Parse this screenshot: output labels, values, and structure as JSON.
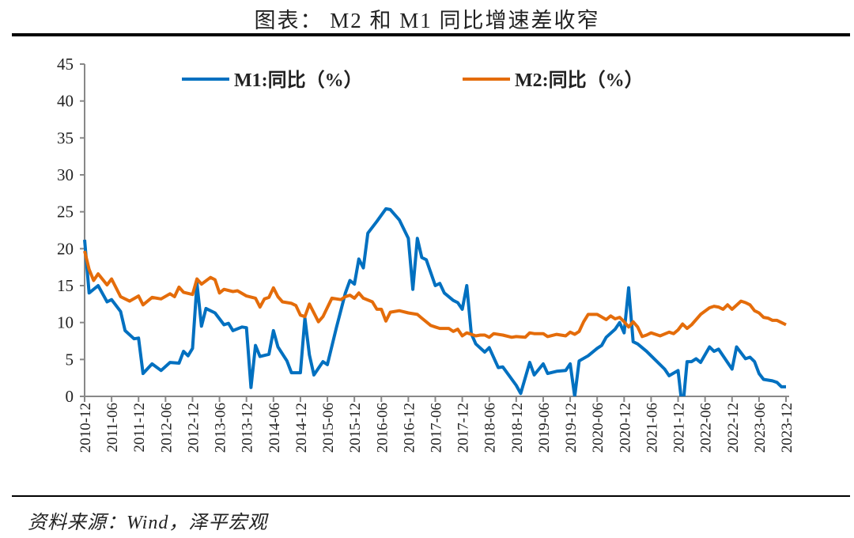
{
  "title": "图表： M2 和 M1 同比增速差收窄",
  "source": "资料来源：Wind，泽平宏观",
  "chart_data": {
    "type": "line",
    "title": "图表： M2 和 M1 同比增速差收窄",
    "xlabel": "",
    "ylabel": "",
    "ylim": [
      0,
      45
    ],
    "yticks": [
      "0",
      "5",
      "10",
      "15",
      "20",
      "25",
      "30",
      "35",
      "40",
      "45"
    ],
    "xrange": [
      "2010-12",
      "2023-12"
    ],
    "xticks": [
      "2010-12",
      "2011-06",
      "2011-12",
      "2012-06",
      "2012-12",
      "2013-06",
      "2013-12",
      "2014-06",
      "2014-12",
      "2015-06",
      "2015-12",
      "2016-06",
      "2016-12",
      "2017-06",
      "2017-12",
      "2018-06",
      "2018-12",
      "2019-06",
      "2019-12",
      "2020-06",
      "2020-12",
      "2021-06",
      "2021-12",
      "2022-06",
      "2022-12",
      "2023-06",
      "2023-12"
    ],
    "grid": false,
    "legend_position": "top",
    "series": [
      {
        "name": "M1:同比（%）",
        "color": "#0070C0",
        "points": [
          [
            "2010-12",
            21.2
          ],
          [
            "2011-01",
            14
          ],
          [
            "2011-03",
            15
          ],
          [
            "2011-05",
            12.8
          ],
          [
            "2011-06",
            13.1
          ],
          [
            "2011-08",
            11.5
          ],
          [
            "2011-09",
            8.9
          ],
          [
            "2011-11",
            7.8
          ],
          [
            "2011-12",
            7.9
          ],
          [
            "2012-01",
            3.1
          ],
          [
            "2012-03",
            4.4
          ],
          [
            "2012-05",
            3.5
          ],
          [
            "2012-07",
            4.6
          ],
          [
            "2012-09",
            4.5
          ],
          [
            "2012-10",
            6.1
          ],
          [
            "2012-11",
            5.5
          ],
          [
            "2012-12",
            6.5
          ],
          [
            "2013-01",
            15.3
          ],
          [
            "2013-02",
            9.5
          ],
          [
            "2013-03",
            11.9
          ],
          [
            "2013-05",
            11.3
          ],
          [
            "2013-07",
            9.7
          ],
          [
            "2013-08",
            9.9
          ],
          [
            "2013-09",
            8.9
          ],
          [
            "2013-11",
            9.4
          ],
          [
            "2013-12",
            9.3
          ],
          [
            "2014-01",
            1.2
          ],
          [
            "2014-02",
            6.9
          ],
          [
            "2014-03",
            5.4
          ],
          [
            "2014-05",
            5.7
          ],
          [
            "2014-06",
            8.9
          ],
          [
            "2014-07",
            6.7
          ],
          [
            "2014-09",
            4.8
          ],
          [
            "2014-10",
            3.2
          ],
          [
            "2014-12",
            3.2
          ],
          [
            "2015-01",
            10.6
          ],
          [
            "2015-02",
            5.6
          ],
          [
            "2015-03",
            2.9
          ],
          [
            "2015-05",
            4.7
          ],
          [
            "2015-06",
            4.3
          ],
          [
            "2015-08",
            9.3
          ],
          [
            "2015-10",
            14
          ],
          [
            "2015-11",
            15.7
          ],
          [
            "2015-12",
            15.2
          ],
          [
            "2016-01",
            18.6
          ],
          [
            "2016-02",
            17.4
          ],
          [
            "2016-03",
            22.1
          ],
          [
            "2016-05",
            23.7
          ],
          [
            "2016-07",
            25.4
          ],
          [
            "2016-08",
            25.3
          ],
          [
            "2016-10",
            23.9
          ],
          [
            "2016-12",
            21.4
          ],
          [
            "2017-01",
            14.5
          ],
          [
            "2017-02",
            21.4
          ],
          [
            "2017-03",
            18.8
          ],
          [
            "2017-04",
            18.5
          ],
          [
            "2017-06",
            15
          ],
          [
            "2017-07",
            15.3
          ],
          [
            "2017-08",
            14
          ],
          [
            "2017-10",
            13
          ],
          [
            "2017-11",
            12.7
          ],
          [
            "2017-12",
            11.8
          ],
          [
            "2018-01",
            15
          ],
          [
            "2018-02",
            8.5
          ],
          [
            "2018-03",
            7.1
          ],
          [
            "2018-05",
            6
          ],
          [
            "2018-06",
            6.6
          ],
          [
            "2018-08",
            3.9
          ],
          [
            "2018-09",
            4
          ],
          [
            "2018-12",
            1.5
          ],
          [
            "2019-01",
            0.4
          ],
          [
            "2019-03",
            4.6
          ],
          [
            "2019-04",
            2.9
          ],
          [
            "2019-06",
            4.4
          ],
          [
            "2019-07",
            3.1
          ],
          [
            "2019-09",
            3.4
          ],
          [
            "2019-11",
            3.5
          ],
          [
            "2019-12",
            4.4
          ],
          [
            "2020-01",
            0
          ],
          [
            "2020-02",
            4.8
          ],
          [
            "2020-04",
            5.5
          ],
          [
            "2020-06",
            6.5
          ],
          [
            "2020-07",
            6.9
          ],
          [
            "2020-08",
            8
          ],
          [
            "2020-10",
            9.1
          ],
          [
            "2020-11",
            10
          ],
          [
            "2020-12",
            8.6
          ],
          [
            "2021-01",
            14.7
          ],
          [
            "2021-02",
            7.4
          ],
          [
            "2021-03",
            7.1
          ],
          [
            "2021-05",
            6.1
          ],
          [
            "2021-06",
            5.5
          ],
          [
            "2021-09",
            3.7
          ],
          [
            "2021-10",
            2.8
          ],
          [
            "2021-12",
            3.5
          ],
          [
            "2022-01",
            -1.9
          ],
          [
            "2022-02",
            4.7
          ],
          [
            "2022-03",
            4.7
          ],
          [
            "2022-04",
            5.1
          ],
          [
            "2022-05",
            4.6
          ],
          [
            "2022-07",
            6.7
          ],
          [
            "2022-08",
            6.1
          ],
          [
            "2022-09",
            6.4
          ],
          [
            "2022-11",
            4.6
          ],
          [
            "2022-12",
            3.7
          ],
          [
            "2023-01",
            6.7
          ],
          [
            "2023-03",
            5.1
          ],
          [
            "2023-04",
            5.3
          ],
          [
            "2023-05",
            4.7
          ],
          [
            "2023-06",
            3.1
          ],
          [
            "2023-07",
            2.3
          ],
          [
            "2023-09",
            2.1
          ],
          [
            "2023-10",
            1.9
          ],
          [
            "2023-11",
            1.3
          ],
          [
            "2023-12",
            1.3
          ]
        ]
      },
      {
        "name": "M2:同比（%）",
        "color": "#E46C0A",
        "points": [
          [
            "2010-12",
            19.7
          ],
          [
            "2011-01",
            17.2
          ],
          [
            "2011-02",
            15.7
          ],
          [
            "2011-03",
            16.6
          ],
          [
            "2011-05",
            15.1
          ],
          [
            "2011-06",
            15.9
          ],
          [
            "2011-08",
            13.5
          ],
          [
            "2011-10",
            12.9
          ],
          [
            "2011-12",
            13.6
          ],
          [
            "2012-01",
            12.4
          ],
          [
            "2012-03",
            13.4
          ],
          [
            "2012-05",
            13.2
          ],
          [
            "2012-07",
            13.9
          ],
          [
            "2012-08",
            13.5
          ],
          [
            "2012-09",
            14.8
          ],
          [
            "2012-10",
            14.1
          ],
          [
            "2012-12",
            13.8
          ],
          [
            "2013-01",
            15.9
          ],
          [
            "2013-02",
            15.2
          ],
          [
            "2013-04",
            16.1
          ],
          [
            "2013-05",
            15.8
          ],
          [
            "2013-06",
            14
          ],
          [
            "2013-07",
            14.5
          ],
          [
            "2013-09",
            14.2
          ],
          [
            "2013-10",
            14.3
          ],
          [
            "2013-12",
            13.6
          ],
          [
            "2014-02",
            13.3
          ],
          [
            "2014-03",
            12.1
          ],
          [
            "2014-04",
            13.2
          ],
          [
            "2014-05",
            13.4
          ],
          [
            "2014-06",
            14.7
          ],
          [
            "2014-07",
            13.5
          ],
          [
            "2014-08",
            12.8
          ],
          [
            "2014-10",
            12.6
          ],
          [
            "2014-11",
            12.3
          ],
          [
            "2014-12",
            11
          ],
          [
            "2015-01",
            10.8
          ],
          [
            "2015-02",
            12.5
          ],
          [
            "2015-04",
            10.1
          ],
          [
            "2015-05",
            10.8
          ],
          [
            "2015-07",
            13.3
          ],
          [
            "2015-09",
            13.1
          ],
          [
            "2015-10",
            13.5
          ],
          [
            "2015-11",
            13.7
          ],
          [
            "2015-12",
            13.3
          ],
          [
            "2016-01",
            14
          ],
          [
            "2016-02",
            13.3
          ],
          [
            "2016-04",
            12.8
          ],
          [
            "2016-05",
            11.8
          ],
          [
            "2016-06",
            11.8
          ],
          [
            "2016-07",
            10.2
          ],
          [
            "2016-08",
            11.4
          ],
          [
            "2016-10",
            11.6
          ],
          [
            "2016-12",
            11.3
          ],
          [
            "2017-02",
            11.1
          ],
          [
            "2017-03",
            10.6
          ],
          [
            "2017-05",
            9.6
          ],
          [
            "2017-06",
            9.4
          ],
          [
            "2017-07",
            9.2
          ],
          [
            "2017-09",
            9.2
          ],
          [
            "2017-10",
            8.8
          ],
          [
            "2017-11",
            9.1
          ],
          [
            "2017-12",
            8.2
          ],
          [
            "2018-01",
            8.6
          ],
          [
            "2018-03",
            8.2
          ],
          [
            "2018-04",
            8.3
          ],
          [
            "2018-05",
            8.3
          ],
          [
            "2018-06",
            8
          ],
          [
            "2018-07",
            8.5
          ],
          [
            "2018-09",
            8.3
          ],
          [
            "2018-11",
            8
          ],
          [
            "2018-12",
            8.1
          ],
          [
            "2019-02",
            8
          ],
          [
            "2019-03",
            8.6
          ],
          [
            "2019-04",
            8.5
          ],
          [
            "2019-06",
            8.5
          ],
          [
            "2019-07",
            8.1
          ],
          [
            "2019-09",
            8.4
          ],
          [
            "2019-11",
            8.2
          ],
          [
            "2019-12",
            8.7
          ],
          [
            "2020-01",
            8.4
          ],
          [
            "2020-02",
            8.8
          ],
          [
            "2020-03",
            10.1
          ],
          [
            "2020-04",
            11.1
          ],
          [
            "2020-06",
            11.1
          ],
          [
            "2020-08",
            10.4
          ],
          [
            "2020-09",
            10.9
          ],
          [
            "2020-10",
            10.5
          ],
          [
            "2020-11",
            10.7
          ],
          [
            "2020-12",
            10.1
          ],
          [
            "2021-01",
            9.4
          ],
          [
            "2021-02",
            10.1
          ],
          [
            "2021-03",
            9.4
          ],
          [
            "2021-04",
            8.1
          ],
          [
            "2021-05",
            8.3
          ],
          [
            "2021-06",
            8.6
          ],
          [
            "2021-08",
            8.2
          ],
          [
            "2021-10",
            8.7
          ],
          [
            "2021-11",
            8.5
          ],
          [
            "2021-12",
            9
          ],
          [
            "2022-01",
            9.8
          ],
          [
            "2022-02",
            9.2
          ],
          [
            "2022-03",
            9.7
          ],
          [
            "2022-05",
            11.1
          ],
          [
            "2022-07",
            12
          ],
          [
            "2022-08",
            12.2
          ],
          [
            "2022-09",
            12.1
          ],
          [
            "2022-10",
            11.8
          ],
          [
            "2022-11",
            12.4
          ],
          [
            "2022-12",
            11.8
          ],
          [
            "2023-02",
            12.9
          ],
          [
            "2023-03",
            12.7
          ],
          [
            "2023-04",
            12.4
          ],
          [
            "2023-05",
            11.6
          ],
          [
            "2023-06",
            11.3
          ],
          [
            "2023-07",
            10.7
          ],
          [
            "2023-08",
            10.6
          ],
          [
            "2023-09",
            10.3
          ],
          [
            "2023-10",
            10.3
          ],
          [
            "2023-11",
            10
          ],
          [
            "2023-12",
            9.7
          ]
        ]
      }
    ]
  }
}
